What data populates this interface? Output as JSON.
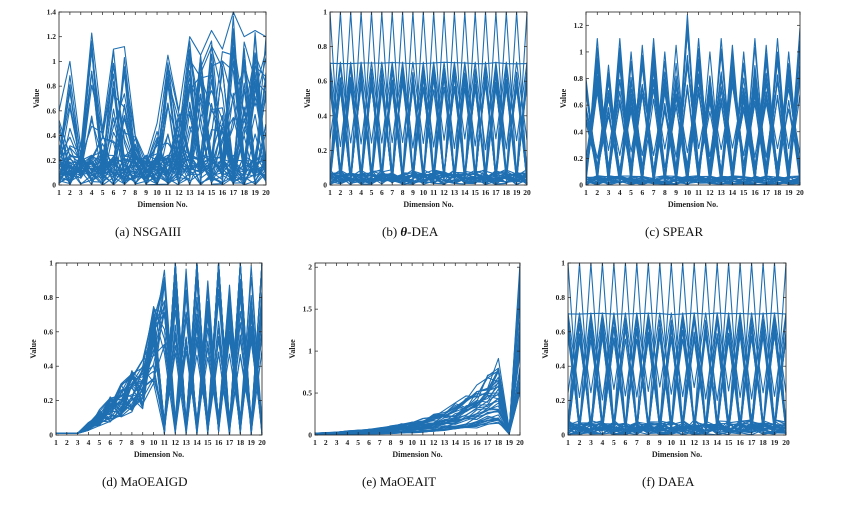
{
  "figure": {
    "line_color": "#1f6fb2",
    "subfigures": [
      {
        "id": "a",
        "label": "(a)",
        "name": "NSGAIII"
      },
      {
        "id": "b",
        "label": "(b)",
        "name_symbol": "θ",
        "name_rest": "-DEA"
      },
      {
        "id": "c",
        "label": "(c)",
        "name": "SPEAR"
      },
      {
        "id": "d",
        "label": "(d)",
        "name": "MaOEAIGD"
      },
      {
        "id": "e",
        "label": "(e)",
        "name": "MaOEAIT"
      },
      {
        "id": "f",
        "label": "(f)",
        "name": "DAEA"
      }
    ]
  },
  "chart_data": [
    {
      "type": "line",
      "title": "NSGAIII",
      "xlabel": "Dimension No.",
      "ylabel": "Value",
      "x": [
        1,
        2,
        3,
        4,
        5,
        6,
        7,
        8,
        9,
        10,
        11,
        12,
        13,
        14,
        15,
        16,
        17,
        18,
        19,
        20
      ],
      "ylim": [
        0,
        1.4
      ],
      "yticks": [
        0,
        0.2,
        0.4,
        0.6,
        0.8,
        1,
        1.2,
        1.4
      ],
      "ytick_labels": [
        "0",
        "0.2",
        "0.4",
        "0.6",
        "0.8",
        "1",
        "1.2",
        "1.4"
      ],
      "pattern": "scattered",
      "peaks": [
        0.6,
        1.0,
        0.3,
        1.23,
        0.45,
        1.1,
        1.12,
        0.4,
        0.2,
        0.5,
        1.05,
        0.6,
        1.2,
        1.05,
        1.25,
        1.1,
        1.42,
        1.2,
        1.25,
        1.2
      ]
    },
    {
      "type": "line",
      "title": "θ-DEA",
      "xlabel": "Dimension No.",
      "ylabel": "Value",
      "x": [
        1,
        2,
        3,
        4,
        5,
        6,
        7,
        8,
        9,
        10,
        11,
        12,
        13,
        14,
        15,
        16,
        17,
        18,
        19,
        20
      ],
      "ylim": [
        0,
        1
      ],
      "yticks": [
        0,
        0.2,
        0.4,
        0.6,
        0.8,
        1
      ],
      "ytick_labels": [
        "0",
        "0.2",
        "0.4",
        "0.6",
        "0.8",
        "1"
      ],
      "pattern": "alternating",
      "plateau": 0.71
    },
    {
      "type": "line",
      "title": "SPEAR",
      "xlabel": "Dimension No.",
      "ylabel": "Value",
      "x": [
        1,
        2,
        3,
        4,
        5,
        6,
        7,
        8,
        9,
        10,
        11,
        12,
        13,
        14,
        15,
        16,
        17,
        18,
        19,
        20
      ],
      "ylim": [
        0,
        1.3
      ],
      "yticks": [
        0,
        0.2,
        0.4,
        0.6,
        0.8,
        1,
        1.2
      ],
      "ytick_labels": [
        "0",
        "0.2",
        "0.4",
        "0.6",
        "0.8",
        "1",
        "1.2"
      ],
      "pattern": "alternating",
      "peaks": [
        0.8,
        1.1,
        0.9,
        1.1,
        1.0,
        1.05,
        1.1,
        1.0,
        1.05,
        1.28,
        1.1,
        1.0,
        1.1,
        1.05,
        1.0,
        1.1,
        1.05,
        1.1,
        1.0,
        1.18
      ]
    },
    {
      "type": "line",
      "title": "MaOEAIGD",
      "xlabel": "Dimension No.",
      "ylabel": "Value",
      "x": [
        1,
        2,
        3,
        4,
        5,
        6,
        7,
        8,
        9,
        10,
        11,
        12,
        13,
        14,
        15,
        16,
        17,
        18,
        19,
        20
      ],
      "ylim": [
        0,
        1
      ],
      "yticks": [
        0,
        0.2,
        0.4,
        0.6,
        0.8,
        1
      ],
      "ytick_labels": [
        "0",
        "0.2",
        "0.4",
        "0.6",
        "0.8",
        "1"
      ],
      "pattern": "ramp-then-alternating",
      "plateau": 0.71
    },
    {
      "type": "line",
      "title": "MaOEAIT",
      "xlabel": "Dimension No.",
      "ylabel": "Value",
      "x": [
        1,
        2,
        3,
        4,
        5,
        6,
        7,
        8,
        9,
        10,
        11,
        12,
        13,
        14,
        15,
        16,
        17,
        18,
        19,
        20
      ],
      "ylim": [
        0,
        2.05
      ],
      "yticks": [
        0,
        0.5,
        1,
        1.5,
        2
      ],
      "ytick_labels": [
        "0",
        "0.5",
        "1",
        "1.5",
        "2"
      ],
      "pattern": "exponential-rise"
    },
    {
      "type": "line",
      "title": "DAEA",
      "xlabel": "Dimension No.",
      "ylabel": "Value",
      "x": [
        1,
        2,
        3,
        4,
        5,
        6,
        7,
        8,
        9,
        10,
        11,
        12,
        13,
        14,
        15,
        16,
        17,
        18,
        19,
        20
      ],
      "ylim": [
        0,
        1
      ],
      "yticks": [
        0,
        0.2,
        0.4,
        0.6,
        0.8,
        1
      ],
      "ytick_labels": [
        "0",
        "0.2",
        "0.4",
        "0.6",
        "0.8",
        "1"
      ],
      "pattern": "alternating",
      "plateau": 0.71
    }
  ]
}
